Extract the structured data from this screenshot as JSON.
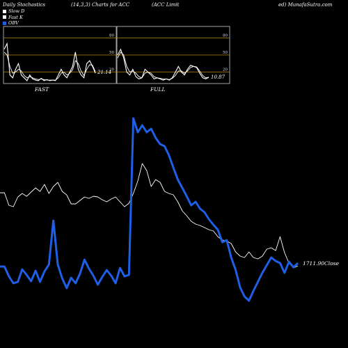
{
  "header": {
    "left": "Daily Stochastics",
    "params": "(14,3,3) Charts for ACC",
    "company": "(ACC Limit",
    "site": "ed) MunafaSutra.com"
  },
  "legend": [
    {
      "label": "Slow D",
      "color": "#ffffff"
    },
    {
      "label": "Fast K",
      "color": "#ffffff"
    },
    {
      "label": "OBV",
      "color": "#1e5fe6"
    }
  ],
  "colors": {
    "background": "#000000",
    "grid": "#b8860b",
    "stoch": "#ffffff",
    "obv": "#1e5fe6",
    "price": "#ffffff"
  },
  "chart_data": [
    {
      "type": "line",
      "title": "FAST",
      "ylim": [
        0,
        100
      ],
      "gridlines": [
        20,
        50,
        80
      ],
      "y_ticks": [
        "80",
        "50",
        "20"
      ],
      "last_value_label": "21.14",
      "series": [
        {
          "name": "Fast K",
          "values": [
            60,
            70,
            15,
            10,
            25,
            35,
            15,
            10,
            5,
            15,
            8,
            6,
            5,
            9,
            5,
            7,
            5,
            6,
            5,
            15,
            25,
            15,
            10,
            20,
            30,
            55,
            25,
            15,
            10,
            35,
            40,
            30,
            18
          ]
        },
        {
          "name": "Slow D",
          "values": [
            55,
            50,
            30,
            18,
            20,
            25,
            22,
            14,
            10,
            12,
            10,
            8,
            7,
            8,
            7,
            6,
            6,
            6,
            6,
            10,
            18,
            20,
            15,
            18,
            24,
            40,
            35,
            22,
            14,
            25,
            33,
            32,
            21
          ]
        }
      ]
    },
    {
      "type": "line",
      "title": "FULL",
      "ylim": [
        0,
        100
      ],
      "gridlines": [
        20,
        50,
        80
      ],
      "y_ticks": [
        "80",
        "50",
        "20"
      ],
      "last_value_label": "10.87",
      "series": [
        {
          "name": "Fast K",
          "values": [
            50,
            60,
            45,
            20,
            15,
            25,
            12,
            8,
            10,
            25,
            20,
            15,
            8,
            10,
            8,
            6,
            8,
            6,
            10,
            20,
            30,
            20,
            15,
            25,
            32,
            30,
            28,
            18,
            10,
            8,
            11
          ]
        },
        {
          "name": "Slow D",
          "values": [
            45,
            55,
            50,
            30,
            20,
            22,
            18,
            12,
            10,
            18,
            20,
            18,
            12,
            10,
            9,
            8,
            8,
            7,
            9,
            14,
            22,
            22,
            18,
            22,
            28,
            30,
            29,
            22,
            14,
            10,
            11
          ]
        }
      ]
    },
    {
      "type": "line",
      "title": "",
      "price_label": "1711.90",
      "price_label_suffix": "Close",
      "series": [
        {
          "name": "Price",
          "values": [
            277,
            277,
            295,
            297,
            283,
            278,
            282,
            276,
            270,
            275,
            265,
            278,
            268,
            262,
            275,
            280,
            293,
            293,
            288,
            283,
            285,
            282,
            283,
            287,
            290,
            286,
            283,
            290,
            297,
            292,
            278,
            260,
            235,
            245,
            268,
            258,
            262,
            275,
            278,
            280,
            290,
            303,
            310,
            318,
            322,
            324,
            327,
            330,
            332,
            340,
            345,
            346,
            350,
            362,
            368,
            370,
            362,
            370,
            372,
            368,
            358,
            356,
            360,
            340,
            363,
            378,
            385,
            382
          ]
        },
        {
          "name": "OBV",
          "values": [
            383,
            383,
            397,
            407,
            405,
            387,
            395,
            404,
            389,
            405,
            390,
            380,
            317,
            380,
            400,
            414,
            399,
            407,
            393,
            373,
            386,
            396,
            409,
            398,
            388,
            396,
            407,
            385,
            397,
            395,
            170,
            190,
            180,
            190,
            185,
            198,
            207,
            210,
            223,
            241,
            258,
            270,
            282,
            295,
            290,
            300,
            305,
            315,
            323,
            330,
            348,
            345,
            370,
            388,
            413,
            426,
            432,
            418,
            405,
            392,
            381,
            370,
            375,
            378,
            392,
            376,
            384,
            378
          ]
        }
      ]
    }
  ]
}
